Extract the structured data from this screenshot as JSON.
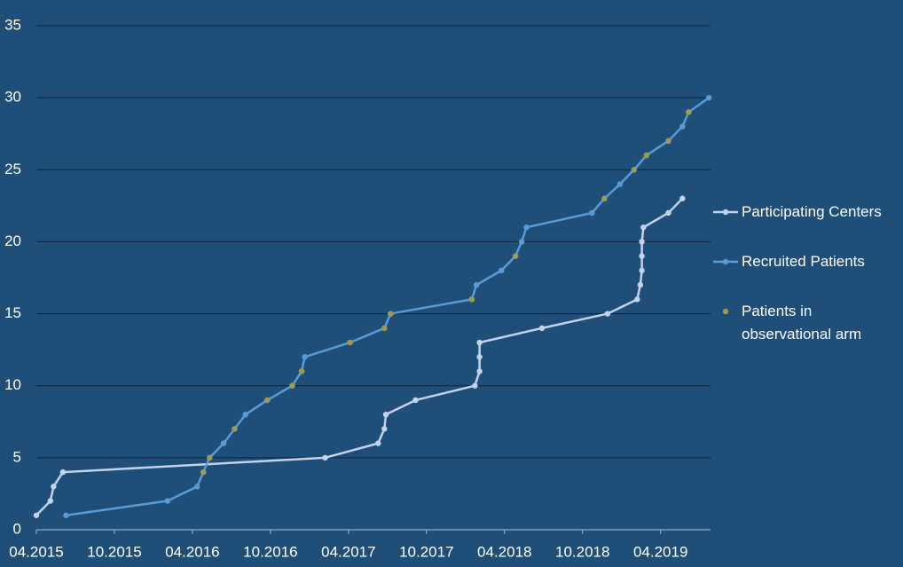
{
  "chart_data": {
    "type": "line",
    "xlim": [
      2015.25,
      2019.57
    ],
    "xticks": [
      {
        "value": 2015.25,
        "label": "04.2015"
      },
      {
        "value": 2015.75,
        "label": "10.2015"
      },
      {
        "value": 2016.25,
        "label": "04.2016"
      },
      {
        "value": 2016.75,
        "label": "10.2016"
      },
      {
        "value": 2017.25,
        "label": "04.2017"
      },
      {
        "value": 2017.75,
        "label": "10.2017"
      },
      {
        "value": 2018.25,
        "label": "04.2018"
      },
      {
        "value": 2018.75,
        "label": "10.2018"
      },
      {
        "value": 2019.25,
        "label": "04.2019"
      }
    ],
    "ylim": [
      0,
      35
    ],
    "yticks": [
      0,
      5,
      10,
      15,
      20,
      25,
      30,
      35
    ],
    "grid": true,
    "legend": "right",
    "series": [
      {
        "name": "Participating Centers",
        "type": "line",
        "color": "#c5d3ea",
        "x": [
          2015.25,
          2015.34,
          2015.36,
          2015.42,
          2017.1,
          2017.44,
          2017.48,
          2017.49,
          2017.68,
          2018.06,
          2018.09,
          2018.09,
          2018.09,
          2018.49,
          2018.91,
          2019.1,
          2019.12,
          2019.13,
          2019.13,
          2019.13,
          2019.14,
          2019.3,
          2019.39
        ],
        "values": [
          1,
          2,
          3,
          4,
          5,
          6,
          7,
          8,
          9,
          10,
          11,
          12,
          13,
          14,
          15,
          16,
          17,
          18,
          19,
          20,
          21,
          22,
          23
        ]
      },
      {
        "name": "Recruited Patients",
        "type": "line",
        "color": "#5b9bd5",
        "x": [
          2015.44,
          2016.09,
          2016.28,
          2016.32,
          2016.36,
          2016.45,
          2016.52,
          2016.59,
          2016.73,
          2016.89,
          2016.95,
          2016.97,
          2017.26,
          2017.48,
          2017.52,
          2018.04,
          2018.07,
          2018.23,
          2018.32,
          2018.36,
          2018.39,
          2018.81,
          2018.89,
          2018.99,
          2019.08,
          2019.16,
          2019.3,
          2019.39,
          2019.43,
          2019.56
        ],
        "values": [
          1,
          2,
          3,
          4,
          5,
          6,
          7,
          8,
          9,
          10,
          11,
          12,
          13,
          14,
          15,
          16,
          17,
          18,
          19,
          20,
          21,
          22,
          23,
          24,
          25,
          26,
          27,
          28,
          29,
          30
        ]
      },
      {
        "name": "Patients in observational arm",
        "type": "scatter",
        "color": "#a09a4c",
        "x": [
          2016.32,
          2016.36,
          2016.52,
          2016.73,
          2016.89,
          2016.95,
          2017.26,
          2017.48,
          2017.52,
          2018.04,
          2018.32,
          2018.89,
          2019.08,
          2019.16,
          2019.3,
          2019.43
        ],
        "values": [
          4,
          5,
          7,
          9,
          10,
          11,
          13,
          14,
          15,
          16,
          19,
          23,
          25,
          26,
          27,
          29
        ]
      }
    ]
  }
}
